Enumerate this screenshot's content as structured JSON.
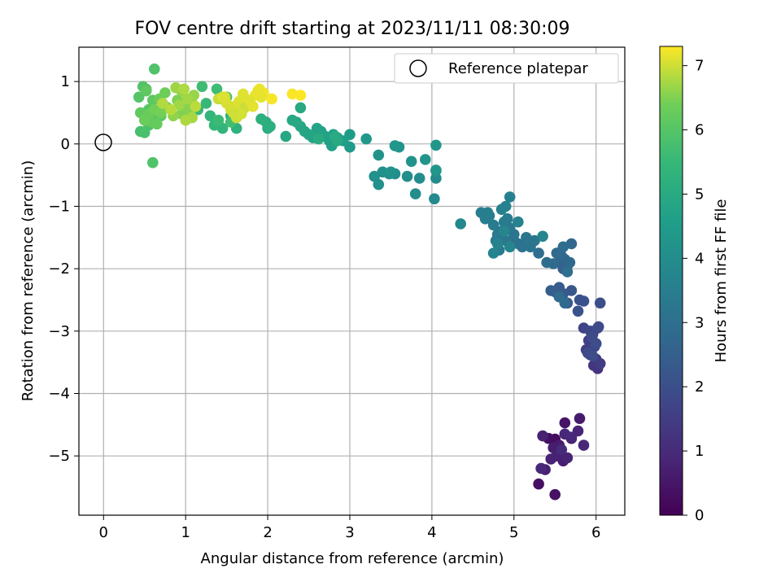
{
  "chart_data": {
    "type": "scatter",
    "title": "FOV centre drift starting at 2023/11/11 08:30:09",
    "xlabel": "Angular distance from reference (arcmin)",
    "ylabel": "Rotation from reference (arcmin)",
    "xlim": [
      -0.3,
      6.35
    ],
    "ylim": [
      -5.95,
      1.55
    ],
    "xticks": [
      "0",
      "1",
      "2",
      "3",
      "4",
      "5",
      "6"
    ],
    "yticks": [
      "1",
      "0",
      "−1",
      "−2",
      "−3",
      "−4",
      "−5"
    ],
    "grid": true,
    "legend": {
      "placement": "top-right",
      "entries": [
        "Reference platepar"
      ]
    },
    "reference_point": {
      "x": 0,
      "y": 0,
      "label": "Reference platepar"
    },
    "colorbar": {
      "label": "Hours from first FF file",
      "colormap": "viridis",
      "range": [
        0,
        7.3
      ],
      "ticks": [
        "0",
        "1",
        "2",
        "3",
        "4",
        "5",
        "6",
        "7"
      ]
    },
    "series": [
      {
        "x": [
          5.5,
          5.42,
          5.3,
          5.5,
          5.62,
          5.55,
          5.7,
          5.8,
          5.55,
          5.48,
          5.6,
          5.38,
          5.52,
          5.35,
          5.45,
          5.65,
          5.78,
          5.85,
          5.62,
          5.33,
          5.7,
          5.58
        ],
        "y": [
          -4.73,
          -4.72,
          -5.45,
          -5.62,
          -4.47,
          -4.95,
          -4.72,
          -4.4,
          -4.83,
          -4.87,
          -5.08,
          -5.22,
          -5.0,
          -4.68,
          -5.05,
          -5.03,
          -4.6,
          -4.83,
          -4.65,
          -5.2,
          -4.7,
          -4.9
        ],
        "t": [
          0.25,
          0.3,
          0.35,
          0.4,
          0.45,
          0.5,
          0.55,
          0.6,
          0.62,
          0.65,
          0.7,
          0.72,
          0.75,
          0.78,
          0.8,
          0.82,
          0.85,
          0.88,
          0.9,
          0.92,
          0.95,
          0.98
        ]
      },
      {
        "x": [
          6.02,
          5.97,
          6.0,
          5.93,
          5.88,
          6.05,
          5.91,
          5.96,
          6.02,
          5.85,
          5.98,
          5.93,
          6.03,
          5.95,
          5.9,
          6.0,
          5.96
        ],
        "y": [
          -3.6,
          -3.55,
          -3.45,
          -3.38,
          -3.3,
          -3.52,
          -3.15,
          -3.05,
          -2.95,
          -2.95,
          -3.25,
          -3.0,
          -2.93,
          -3.1,
          -3.35,
          -3.2,
          -3.4
        ],
        "t": [
          1.2,
          1.3,
          1.35,
          1.4,
          1.45,
          1.5,
          1.55,
          1.6,
          1.65,
          1.7,
          1.75,
          1.8,
          1.85,
          1.88,
          1.9,
          1.92,
          1.95
        ]
      },
      {
        "x": [
          6.05,
          5.85,
          5.8,
          5.78,
          5.65,
          5.7,
          5.6,
          5.55,
          5.5,
          5.45,
          5.6,
          5.65,
          5.55,
          5.62,
          5.7,
          5.58,
          5.68,
          5.52,
          5.48,
          5.62,
          5.55,
          5.6,
          5.4,
          5.3,
          5.65
        ],
        "y": [
          -2.55,
          -2.52,
          -2.5,
          -2.68,
          -2.55,
          -2.35,
          -2.4,
          -2.3,
          -2.37,
          -2.35,
          -2.0,
          -1.95,
          -1.9,
          -1.85,
          -1.6,
          -1.8,
          -1.9,
          -1.75,
          -1.92,
          -2.55,
          -2.45,
          -1.65,
          -1.9,
          -1.75,
          -2.05
        ],
        "t": [
          2.0,
          2.05,
          2.1,
          2.15,
          2.2,
          2.25,
          2.3,
          2.35,
          2.4,
          2.45,
          2.5,
          2.55,
          2.6,
          2.65,
          2.7,
          2.75,
          2.78,
          2.8,
          2.82,
          2.85,
          2.88,
          2.9,
          2.92,
          2.94,
          2.96
        ]
      },
      {
        "x": [
          5.0,
          5.05,
          5.1,
          5.2,
          5.25,
          5.15,
          5.0,
          4.9,
          4.95,
          4.85,
          4.8,
          4.78,
          4.82,
          4.88,
          4.92,
          4.75,
          4.7,
          4.65,
          4.6,
          4.68,
          4.85,
          4.9,
          4.95,
          5.05,
          4.8,
          4.75,
          5.35,
          4.95,
          4.88
        ],
        "y": [
          -1.55,
          -1.6,
          -1.65,
          -1.65,
          -1.55,
          -1.5,
          -1.45,
          -1.55,
          -1.35,
          -1.4,
          -1.45,
          -1.55,
          -1.7,
          -1.25,
          -1.2,
          -1.3,
          -1.15,
          -1.2,
          -1.1,
          -1.1,
          -1.05,
          -1.0,
          -0.85,
          -1.25,
          -1.6,
          -1.75,
          -1.48,
          -1.65,
          -1.4
        ],
        "t": [
          3.0,
          3.05,
          3.1,
          3.15,
          3.18,
          3.2,
          3.22,
          3.25,
          3.28,
          3.3,
          3.32,
          3.35,
          3.38,
          3.4,
          3.42,
          3.45,
          3.48,
          3.5,
          3.52,
          3.55,
          3.58,
          3.6,
          3.62,
          3.65,
          3.68,
          3.7,
          3.72,
          3.75,
          3.78
        ]
      },
      {
        "x": [
          4.35,
          4.03,
          4.05,
          4.05,
          3.85,
          3.8,
          3.7,
          3.55,
          3.48,
          3.35,
          3.3,
          3.4,
          3.35,
          3.5,
          3.75,
          3.92,
          3.6,
          3.55,
          4.05,
          4.05
        ],
        "y": [
          -1.28,
          -0.88,
          -0.55,
          -0.42,
          -0.55,
          -0.8,
          -0.52,
          -0.48,
          -0.48,
          -0.65,
          -0.52,
          -0.45,
          -0.18,
          -0.45,
          -0.28,
          -0.25,
          -0.05,
          -0.03,
          -0.02,
          -0.43
        ],
        "t": [
          3.85,
          3.9,
          3.92,
          3.95,
          3.98,
          4.0,
          4.02,
          4.05,
          4.08,
          4.1,
          4.12,
          4.15,
          4.18,
          4.2,
          4.22,
          4.25,
          4.28,
          4.3,
          4.32,
          4.35
        ]
      },
      {
        "x": [
          3.2,
          3.0,
          3.0,
          2.92,
          2.85,
          2.8,
          2.75,
          2.78,
          2.7,
          2.65,
          2.6,
          2.55,
          2.5,
          2.45,
          2.4,
          2.3,
          2.22,
          2.35,
          2.4,
          2.85,
          2.82,
          2.62
        ],
        "y": [
          0.08,
          -0.05,
          0.15,
          0.05,
          0.1,
          0.15,
          0.05,
          -0.03,
          0.12,
          0.2,
          0.25,
          0.1,
          0.15,
          0.2,
          0.28,
          0.38,
          0.12,
          0.35,
          0.58,
          0.05,
          0.12,
          0.08
        ],
        "t": [
          4.4,
          4.45,
          4.5,
          4.55,
          4.6,
          4.62,
          4.65,
          4.68,
          4.7,
          4.72,
          4.75,
          4.78,
          4.8,
          4.82,
          4.85,
          4.88,
          4.9,
          4.92,
          4.95,
          4.97,
          4.99,
          5.01
        ]
      },
      {
        "x": [
          2.0,
          1.98,
          2.03,
          1.92,
          1.62,
          1.55,
          1.45,
          1.3,
          1.35,
          1.25,
          1.15,
          1.05,
          1.4,
          1.45,
          1.38,
          1.2,
          1.5,
          1.6,
          1.55
        ],
        "y": [
          0.25,
          0.35,
          0.28,
          0.4,
          0.25,
          0.45,
          0.25,
          0.45,
          0.3,
          0.65,
          0.55,
          0.42,
          0.38,
          0.72,
          0.88,
          0.92,
          0.75,
          0.6,
          0.35
        ],
        "t": [
          5.05,
          5.1,
          5.15,
          5.2,
          5.25,
          5.3,
          5.35,
          5.4,
          5.45,
          5.5,
          5.52,
          5.55,
          5.58,
          5.6,
          5.62,
          5.65,
          5.68,
          5.7,
          5.72
        ]
      },
      {
        "x": [
          0.45,
          0.5,
          0.55,
          0.58,
          0.6,
          0.62,
          0.48,
          0.52,
          0.43,
          0.55,
          0.65,
          0.7,
          0.75,
          0.6,
          0.52,
          0.45,
          0.58,
          0.72,
          0.65,
          0.55,
          0.5,
          0.68,
          0.75
        ],
        "y": [
          0.2,
          0.18,
          0.3,
          0.4,
          -0.3,
          1.2,
          0.92,
          0.88,
          0.75,
          0.55,
          0.5,
          0.45,
          0.6,
          0.7,
          0.85,
          0.5,
          0.35,
          0.65,
          0.32,
          0.48,
          0.38,
          0.72,
          0.82
        ],
        "t": [
          5.8,
          5.82,
          5.85,
          5.88,
          5.9,
          5.92,
          5.95,
          5.97,
          6.0,
          6.02,
          6.05,
          6.08,
          6.1,
          6.12,
          6.15,
          6.18,
          6.2,
          6.22,
          6.25,
          6.28,
          6.3,
          6.32,
          6.35
        ]
      },
      {
        "x": [
          0.62,
          0.7,
          0.78,
          0.9,
          0.95,
          1.0,
          1.05,
          1.08,
          0.85,
          0.95,
          1.1,
          0.88,
          0.92,
          1.02,
          1.08,
          1.0,
          0.98,
          0.72,
          0.82,
          1.12
        ],
        "y": [
          0.55,
          0.5,
          0.58,
          0.7,
          0.48,
          0.6,
          0.52,
          0.65,
          0.45,
          0.85,
          0.78,
          0.9,
          0.62,
          0.72,
          0.42,
          0.38,
          0.88,
          0.65,
          0.55,
          0.6
        ],
        "t": [
          6.4,
          6.42,
          6.45,
          6.48,
          6.5,
          6.52,
          6.55,
          6.58,
          6.6,
          6.62,
          6.65,
          6.68,
          6.7,
          6.72,
          6.75,
          6.78,
          6.8,
          6.82,
          6.85,
          6.88
        ]
      },
      {
        "x": [
          1.4,
          1.48,
          1.55,
          1.6,
          1.65,
          1.7,
          1.75,
          1.8,
          1.85,
          1.9,
          1.95,
          2.05,
          1.72,
          1.62,
          1.68,
          1.5,
          1.45,
          1.78,
          1.92,
          1.88,
          2.3,
          2.4,
          1.58,
          1.82
        ],
        "y": [
          0.72,
          0.75,
          0.55,
          0.6,
          0.68,
          0.8,
          0.65,
          0.62,
          0.78,
          0.88,
          0.82,
          0.72,
          0.58,
          0.42,
          0.48,
          0.65,
          0.75,
          0.7,
          0.75,
          0.85,
          0.8,
          0.78,
          0.5,
          0.6
        ],
        "t": [
          6.95,
          7.0,
          7.02,
          7.05,
          7.08,
          7.1,
          7.12,
          7.15,
          7.18,
          7.2,
          7.22,
          7.25,
          6.98,
          7.0,
          7.03,
          7.06,
          7.09,
          7.11,
          7.14,
          7.17,
          7.27,
          7.3,
          7.01,
          7.13
        ]
      }
    ]
  }
}
